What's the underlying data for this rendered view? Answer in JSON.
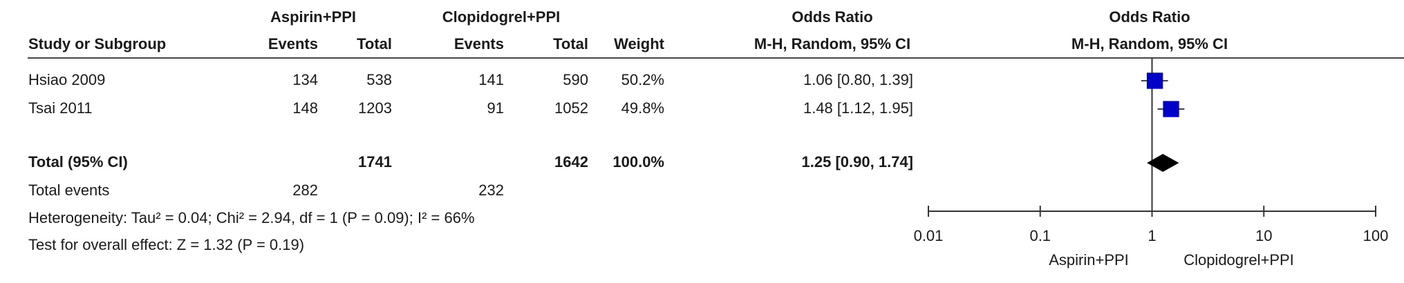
{
  "chart_data": {
    "type": "forest",
    "groups": [
      "Aspirin+PPI",
      "Clopidogrel+PPI",
      "Odds Ratio",
      "Odds Ratio"
    ],
    "columns": [
      "Study or Subgroup",
      "Events",
      "Total",
      "Events",
      "Total",
      "Weight",
      "M-H, Random, 95% CI",
      "M-H, Random, 95% CI"
    ],
    "categories": [
      "Hsiao 2009",
      "Tsai 2011"
    ],
    "events_a": [
      134,
      148
    ],
    "total_a": [
      538,
      1203
    ],
    "events_b": [
      141,
      91
    ],
    "total_b": [
      590,
      1052
    ],
    "weights": [
      50.2,
      49.8
    ],
    "weight_labels": [
      "50.2%",
      "49.8%"
    ],
    "values": [
      1.06,
      1.48
    ],
    "ci_low": [
      0.8,
      1.12
    ],
    "ci_high": [
      1.39,
      1.95
    ],
    "value_labels": [
      "1.06 [0.80, 1.39]",
      "1.48 [1.12, 1.95]"
    ],
    "total": {
      "label": "Total (95% CI)",
      "total_a": 1741,
      "total_b": 1642,
      "weight": 100,
      "weight_label": "100.0%",
      "value": 1.25,
      "ci_low": 0.9,
      "ci_high": 1.74,
      "value_label": "1.25 [0.90, 1.74]"
    },
    "events_row": {
      "label": "Total events",
      "events_a": 282,
      "events_b": 232
    },
    "notes": [
      "Heterogeneity: Tau² = 0.04; Chi² = 2.94, df = 1 (P = 0.09); I² = 66%",
      "Test for overall effect: Z = 1.32 (P = 0.19)"
    ],
    "xlim": [
      0.01,
      100
    ],
    "xticks": [
      0.01,
      0.1,
      1,
      10,
      100
    ],
    "log_x": true,
    "axis_labels": [
      "Aspirin+PPI",
      "Clopidogrel+PPI"
    ],
    "color": "#0000c8"
  }
}
